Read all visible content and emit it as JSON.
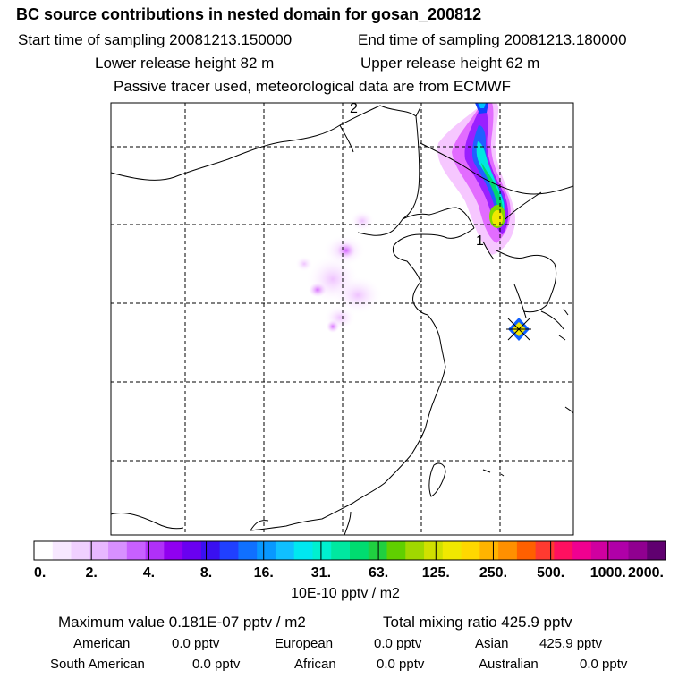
{
  "header": {
    "title": "BC  source contributions in nested domain for gosan_200812",
    "start_sampling": "Start time of sampling 20081213.150000",
    "end_sampling": "End time of sampling 20081213.180000",
    "lower_height": "Lower release height   82 m",
    "upper_height": "Upper release height   62 m",
    "tracer_note": "Passive tracer used, meteorological data are from ECMWF"
  },
  "map": {
    "marker_labels": [
      "2",
      "1"
    ],
    "receptor": "gosan"
  },
  "chart_data": {
    "type": "heatmap",
    "title": "BC  source contributions in nested domain for gosan_200812",
    "units": "10E-10 pptv / m2",
    "colorbar_ticks": [
      "0.",
      "2.",
      "4.",
      "8.",
      "16.",
      "31.",
      "63.",
      "125.",
      "250.",
      "500.",
      "1000.",
      "2000."
    ],
    "colorbar_colors": [
      "#ffffff",
      "#f7e8ff",
      "#f0d0ff",
      "#e8b8ff",
      "#d890ff",
      "#c860ff",
      "#b030f8",
      "#9000f0",
      "#6a00f0",
      "#3a10f0",
      "#2040ff",
      "#1070ff",
      "#0898ff",
      "#10c0ff",
      "#00e8f0",
      "#00f0d0",
      "#00e8a0",
      "#00dc70",
      "#20d040",
      "#60d000",
      "#a0d800",
      "#d0e000",
      "#f0e800",
      "#ffd800",
      "#ffb400",
      "#ff9000",
      "#ff6000",
      "#ff3a30",
      "#ff1060",
      "#f00090",
      "#d000a0",
      "#b000a8",
      "#900090",
      "#600070"
    ],
    "stats": {
      "maximum": "Maximum value  0.181E-07 pptv / m2",
      "total": "Total mixing ratio      425.9 pptv"
    },
    "regions": [
      {
        "name": "American",
        "value": "0.0 pptv"
      },
      {
        "name": "European",
        "value": "0.0 pptv"
      },
      {
        "name": "Asian",
        "value": "425.9 pptv"
      },
      {
        "name": "South American",
        "value": "0.0 pptv"
      },
      {
        "name": "African",
        "value": "0.0 pptv"
      },
      {
        "name": "Australian",
        "value": "0.0 pptv"
      }
    ]
  }
}
